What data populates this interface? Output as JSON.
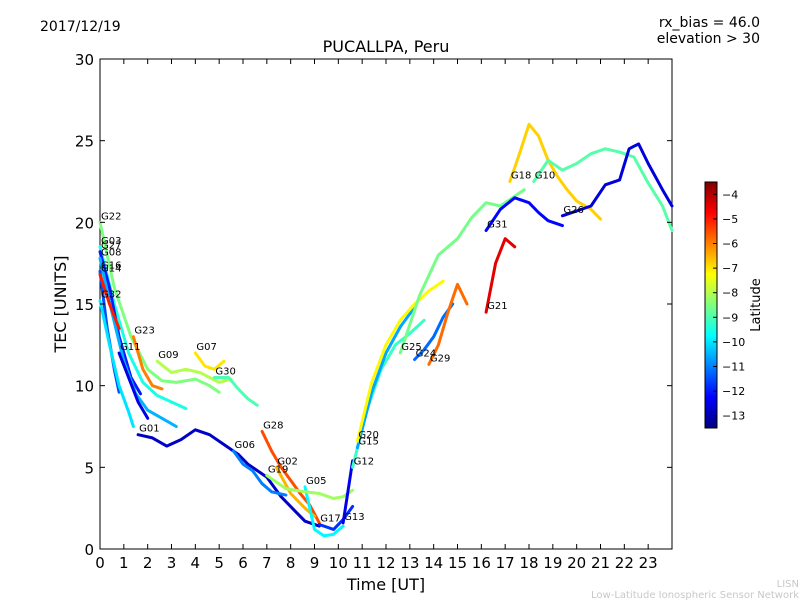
{
  "header": {
    "date": "2017/12/19",
    "bias_line": "rx_bias = 46.0",
    "elevation_line": "elevation > 30"
  },
  "footer": {
    "org_short": "LISN",
    "org_full": "Low-Latitude Ionospheric Sensor Network"
  },
  "chart_data": {
    "type": "line",
    "title": "PUCALLPA, Peru",
    "xlabel": "Time [UT]",
    "ylabel": "TEC [UNITS]",
    "xlim": [
      0,
      24
    ],
    "ylim": [
      0,
      30
    ],
    "xticks": [
      0,
      1,
      2,
      3,
      4,
      5,
      6,
      7,
      8,
      9,
      10,
      11,
      12,
      13,
      14,
      15,
      16,
      17,
      18,
      19,
      20,
      21,
      22,
      23
    ],
    "yticks": [
      0,
      5,
      10,
      15,
      20,
      25,
      30
    ],
    "grid": false,
    "colorbar": {
      "label": "Latitude",
      "range": [
        -13.5,
        -3.5
      ],
      "ticks": [
        -4,
        -5,
        -6,
        -7,
        -8,
        -9,
        -10,
        -11,
        -12,
        -13
      ],
      "colormap": "jet",
      "colors": [
        "#00007f",
        "#0000ff",
        "#007fff",
        "#00ffff",
        "#7fff7f",
        "#ffff00",
        "#ff7f00",
        "#ff0000",
        "#7f0000"
      ]
    },
    "series": [
      {
        "name": "G22",
        "lat": -8.5,
        "points": [
          [
            0,
            20
          ],
          [
            0.6,
            16
          ],
          [
            1.3,
            13
          ],
          [
            2.0,
            11
          ],
          [
            2.6,
            10.3
          ],
          [
            3.2,
            10.2
          ],
          [
            4.0,
            10.4
          ],
          [
            4.6,
            10.0
          ],
          [
            5.0,
            9.6
          ]
        ]
      },
      {
        "name": "G03",
        "lat": -9.5,
        "points": [
          [
            0,
            18.5
          ],
          [
            0.6,
            15
          ],
          [
            1.2,
            12
          ],
          [
            1.8,
            10.2
          ],
          [
            2.4,
            9.4
          ],
          [
            3.0,
            9.0
          ],
          [
            3.6,
            8.6
          ]
        ]
      },
      {
        "name": "G27",
        "lat": -12,
        "points": [
          [
            0,
            18.2
          ],
          [
            0.4,
            16
          ],
          [
            0.8,
            13
          ],
          [
            1.3,
            10.5
          ],
          [
            1.7,
            9.5
          ]
        ]
      },
      {
        "name": "G08",
        "lat": -10.5,
        "points": [
          [
            0,
            17.8
          ],
          [
            0.5,
            14.5
          ],
          [
            1.0,
            11.5
          ],
          [
            1.5,
            9.5
          ],
          [
            2.0,
            8.5
          ],
          [
            2.6,
            8.0
          ],
          [
            3.2,
            7.5
          ]
        ]
      },
      {
        "name": "G16",
        "lat": -11.5,
        "points": [
          [
            0,
            17
          ],
          [
            0.3,
            13.5
          ],
          [
            0.6,
            11
          ],
          [
            0.8,
            9.6
          ]
        ]
      },
      {
        "name": "G14",
        "lat": -5,
        "points": [
          [
            0,
            16.8
          ],
          [
            0.4,
            15
          ],
          [
            0.8,
            13.5
          ]
        ]
      },
      {
        "name": "G32",
        "lat": -10,
        "points": [
          [
            0,
            15.2
          ],
          [
            0.4,
            12.5
          ],
          [
            0.8,
            10
          ],
          [
            1.2,
            8.4
          ],
          [
            1.4,
            7.5
          ]
        ]
      },
      {
        "name": "G23",
        "lat": -6,
        "points": [
          [
            1.4,
            13
          ],
          [
            1.8,
            11
          ],
          [
            2.2,
            10
          ],
          [
            2.6,
            9.8
          ]
        ]
      },
      {
        "name": "G11",
        "lat": -12.5,
        "points": [
          [
            0.8,
            12
          ],
          [
            1.2,
            10.5
          ],
          [
            1.6,
            9
          ],
          [
            2.0,
            8.0
          ]
        ]
      },
      {
        "name": "G09",
        "lat": -8,
        "points": [
          [
            2.4,
            11.5
          ],
          [
            3.0,
            10.8
          ],
          [
            3.6,
            11.0
          ],
          [
            4.2,
            10.8
          ],
          [
            4.6,
            10.5
          ],
          [
            5.0,
            10.2
          ],
          [
            5.5,
            10.4
          ]
        ]
      },
      {
        "name": "G01",
        "lat": -12.8,
        "points": [
          [
            1.6,
            7
          ],
          [
            2.2,
            6.8
          ],
          [
            2.8,
            6.3
          ],
          [
            3.4,
            6.7
          ],
          [
            4.0,
            7.3
          ],
          [
            4.6,
            7.0
          ],
          [
            5.2,
            6.4
          ],
          [
            5.8,
            5.8
          ],
          [
            6.2,
            5.2
          ],
          [
            6.6,
            4.8
          ],
          [
            7.0,
            4.4
          ],
          [
            7.6,
            3.2
          ],
          [
            8.2,
            2.3
          ],
          [
            8.6,
            1.7
          ],
          [
            9.2,
            1.4
          ]
        ]
      },
      {
        "name": "G07",
        "lat": -7,
        "points": [
          [
            4.0,
            12
          ],
          [
            4.4,
            11.2
          ],
          [
            4.8,
            11.0
          ],
          [
            5.2,
            11.5
          ]
        ]
      },
      {
        "name": "G30",
        "lat": -9,
        "points": [
          [
            4.8,
            10.5
          ],
          [
            5.4,
            10.5
          ],
          [
            5.8,
            9.8
          ],
          [
            6.2,
            9.2
          ],
          [
            6.6,
            8.8
          ]
        ]
      },
      {
        "name": "G06",
        "lat": -11,
        "points": [
          [
            5.6,
            6
          ],
          [
            6.0,
            5.2
          ],
          [
            6.4,
            4.8
          ],
          [
            6.8,
            4.0
          ],
          [
            7.2,
            3.5
          ],
          [
            7.8,
            3.3
          ]
        ]
      },
      {
        "name": "G28",
        "lat": -5.5,
        "points": [
          [
            6.8,
            7.2
          ],
          [
            7.2,
            6.0
          ],
          [
            7.6,
            5.0
          ],
          [
            8.0,
            4.2
          ],
          [
            8.4,
            3.4
          ],
          [
            8.8,
            2.7
          ],
          [
            9.2,
            1.6
          ]
        ]
      },
      {
        "name": "G02",
        "lat": -6.5,
        "points": [
          [
            7.4,
            5.0
          ],
          [
            8.0,
            3.4
          ],
          [
            8.6,
            2.5
          ],
          [
            9.0,
            2.0
          ]
        ]
      },
      {
        "name": "G05",
        "lat": -9.8,
        "points": [
          [
            8.6,
            3.8
          ],
          [
            9.0,
            1.2
          ],
          [
            9.4,
            0.8
          ],
          [
            9.8,
            0.9
          ],
          [
            10.2,
            1.4
          ]
        ]
      },
      {
        "name": "G19",
        "lat": -8.2,
        "points": [
          [
            7.0,
            4.5
          ],
          [
            7.8,
            3.7
          ],
          [
            8.6,
            3.5
          ],
          [
            9.2,
            3.4
          ],
          [
            9.8,
            3.1
          ],
          [
            10.2,
            3.2
          ],
          [
            10.6,
            3.6
          ]
        ]
      },
      {
        "name": "G17",
        "lat": -11.8,
        "points": [
          [
            9.2,
            1.5
          ],
          [
            9.8,
            1.2
          ],
          [
            10.2,
            1.8
          ],
          [
            10.6,
            2.6
          ]
        ]
      },
      {
        "name": "G13",
        "lat": -12.4,
        "points": [
          [
            10.2,
            1.6
          ],
          [
            10.4,
            3.5
          ],
          [
            10.6,
            5.4
          ]
        ]
      },
      {
        "name": "G12",
        "lat": -9.2,
        "points": [
          [
            10.6,
            5.0
          ],
          [
            11.2,
            8.5
          ],
          [
            11.8,
            11.0
          ],
          [
            12.4,
            12.5
          ],
          [
            13.0,
            13.2
          ],
          [
            13.6,
            14.0
          ]
        ]
      },
      {
        "name": "G15",
        "lat": -10.6,
        "points": [
          [
            10.8,
            6.2
          ],
          [
            11.4,
            9.6
          ],
          [
            12.0,
            12.0
          ],
          [
            12.6,
            13.6
          ],
          [
            13.2,
            14.8
          ]
        ]
      },
      {
        "name": "G20",
        "lat": -7.2,
        "points": [
          [
            10.8,
            6.6
          ],
          [
            11.4,
            10.2
          ],
          [
            12.0,
            12.5
          ],
          [
            12.6,
            14.0
          ],
          [
            13.2,
            15.0
          ],
          [
            13.8,
            15.8
          ],
          [
            14.4,
            16.4
          ]
        ]
      },
      {
        "name": "G24",
        "lat": -11.2,
        "points": [
          [
            13.2,
            11.6
          ],
          [
            13.6,
            12.2
          ],
          [
            14.0,
            13.0
          ],
          [
            14.4,
            14.2
          ],
          [
            14.8,
            15.0
          ]
        ]
      },
      {
        "name": "G29",
        "lat": -5.8,
        "points": [
          [
            13.8,
            11.3
          ],
          [
            14.2,
            12.5
          ],
          [
            14.6,
            14.5
          ],
          [
            15.0,
            16.2
          ],
          [
            15.4,
            15.0
          ]
        ]
      },
      {
        "name": "G25",
        "lat": -8.6,
        "points": [
          [
            12.6,
            12.0
          ],
          [
            13.4,
            15.5
          ],
          [
            14.2,
            18.0
          ],
          [
            15.0,
            19.0
          ],
          [
            15.6,
            20.3
          ],
          [
            16.2,
            21.2
          ],
          [
            16.8,
            21.0
          ],
          [
            17.4,
            21.6
          ],
          [
            17.8,
            22.0
          ]
        ]
      },
      {
        "name": "G21",
        "lat": -4.5,
        "points": [
          [
            16.2,
            14.5
          ],
          [
            16.6,
            17.5
          ],
          [
            17.0,
            19.0
          ],
          [
            17.4,
            18.5
          ]
        ]
      },
      {
        "name": "G31",
        "lat": -12.2,
        "points": [
          [
            16.2,
            19.5
          ],
          [
            16.8,
            20.8
          ],
          [
            17.4,
            21.5
          ],
          [
            18.0,
            21.2
          ],
          [
            18.4,
            20.6
          ],
          [
            18.8,
            20.1
          ],
          [
            19.4,
            19.8
          ]
        ]
      },
      {
        "name": "G18",
        "lat": -6.8,
        "points": [
          [
            17.2,
            22.5
          ],
          [
            17.6,
            24.2
          ],
          [
            18.0,
            26.0
          ],
          [
            18.4,
            25.3
          ],
          [
            18.8,
            23.8
          ],
          [
            19.2,
            22.8
          ],
          [
            19.6,
            22.0
          ],
          [
            20.0,
            21.3
          ],
          [
            20.6,
            20.8
          ],
          [
            21.0,
            20.2
          ]
        ]
      },
      {
        "name": "G10",
        "lat": -8.9,
        "points": [
          [
            18.2,
            22.5
          ],
          [
            18.8,
            23.8
          ],
          [
            19.4,
            23.2
          ],
          [
            20.0,
            23.6
          ],
          [
            20.6,
            24.2
          ],
          [
            21.2,
            24.5
          ],
          [
            21.8,
            24.3
          ],
          [
            22.4,
            24.0
          ],
          [
            23.0,
            22.4
          ],
          [
            23.6,
            21.0
          ],
          [
            24.0,
            19.5
          ]
        ]
      },
      {
        "name": "G26",
        "lat": -12.6,
        "points": [
          [
            19.4,
            20.4
          ],
          [
            20.0,
            20.7
          ],
          [
            20.6,
            21.0
          ],
          [
            21.2,
            22.3
          ],
          [
            21.8,
            22.6
          ],
          [
            22.2,
            24.5
          ],
          [
            22.6,
            24.8
          ],
          [
            23.0,
            23.6
          ],
          [
            23.6,
            22.0
          ],
          [
            24.0,
            21.0
          ]
        ]
      }
    ]
  }
}
